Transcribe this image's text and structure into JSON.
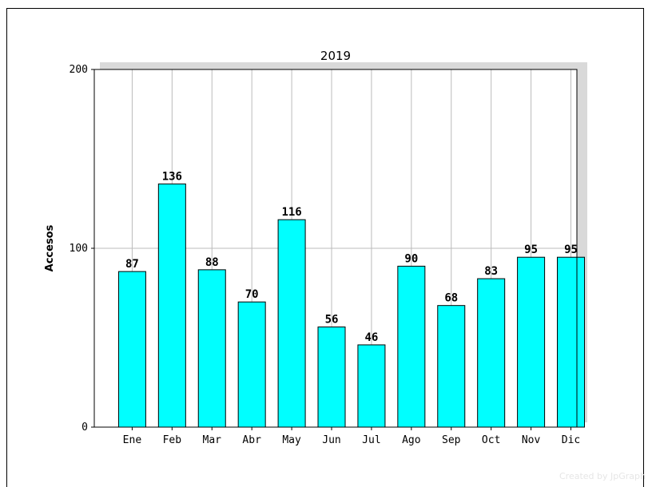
{
  "chart_data": {
    "type": "bar",
    "title": "2019",
    "xlabel": "",
    "ylabel": "Accesos",
    "categories": [
      "Ene",
      "Feb",
      "Mar",
      "Abr",
      "May",
      "Jun",
      "Jul",
      "Ago",
      "Sep",
      "Oct",
      "Nov",
      "Dic"
    ],
    "values": [
      87,
      136,
      88,
      70,
      116,
      56,
      46,
      90,
      68,
      83,
      95,
      95
    ],
    "ylim": [
      0,
      200
    ],
    "yticks": [
      "0",
      "100",
      "200"
    ],
    "grid": true,
    "bar_color": "#00ffff",
    "legend": "none"
  },
  "watermark": "Created by JpGraph"
}
